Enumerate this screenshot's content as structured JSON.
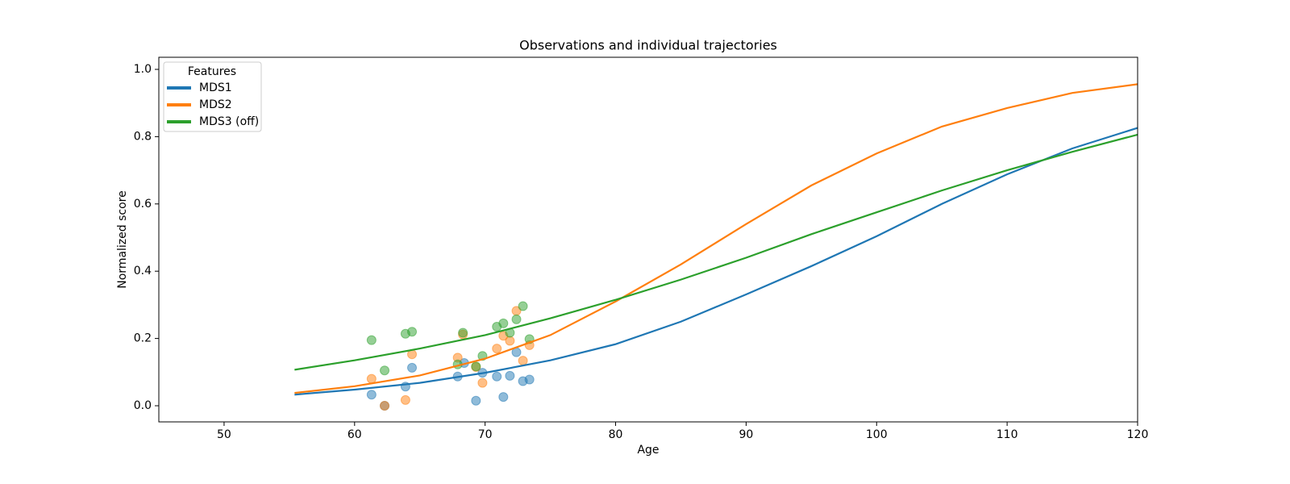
{
  "chart_data": {
    "type": "line",
    "title": "Observations and individual trajectories",
    "xlabel": "Age",
    "ylabel": "Normalized score",
    "legend_title": "Features",
    "legend": "upper left",
    "xlim": [
      45,
      120
    ],
    "ylim": [
      -0.048,
      1.036
    ],
    "xticks": [
      50,
      60,
      70,
      80,
      90,
      100,
      110,
      120
    ],
    "yticks": [
      {
        "value": 0,
        "label": "0.0"
      },
      {
        "value": 0.2,
        "label": "0.2"
      },
      {
        "value": 0.4,
        "label": "0.4"
      },
      {
        "value": 0.6,
        "label": "0.6"
      },
      {
        "value": 0.8,
        "label": "0.8"
      },
      {
        "value": 1.0,
        "label": "1.0"
      }
    ],
    "x": [
      55.4,
      60,
      65,
      70,
      75,
      80,
      85,
      90,
      95,
      100,
      105,
      110,
      115,
      120
    ],
    "series": [
      {
        "name": "MDS1",
        "color": "#1f77b4",
        "values": [
          0.033,
          0.048,
          0.068,
          0.098,
          0.135,
          0.183,
          0.25,
          0.331,
          0.415,
          0.504,
          0.6,
          0.688,
          0.765,
          0.826
        ],
        "points": {
          "x": [
            61.3,
            62.3,
            63.9,
            64.4,
            67.9,
            68.4,
            69.3,
            69.8,
            70.9,
            71.4,
            71.9,
            72.4,
            72.9,
            73.4
          ],
          "values": [
            0.033,
            0.0,
            0.057,
            0.113,
            0.087,
            0.127,
            0.015,
            0.098,
            0.087,
            0.026,
            0.089,
            0.159,
            0.073,
            0.078
          ]
        }
      },
      {
        "name": "MDS2",
        "color": "#ff7f0e",
        "values": [
          0.038,
          0.058,
          0.09,
          0.14,
          0.21,
          0.31,
          0.42,
          0.54,
          0.655,
          0.75,
          0.83,
          0.885,
          0.93,
          0.956
        ],
        "points": {
          "x": [
            61.3,
            62.3,
            63.9,
            64.4,
            67.9,
            68.3,
            69.3,
            69.8,
            70.9,
            71.4,
            71.9,
            72.4,
            72.9,
            73.4
          ],
          "values": [
            0.08,
            0.0,
            0.017,
            0.153,
            0.143,
            0.212,
            0.115,
            0.068,
            0.17,
            0.208,
            0.193,
            0.282,
            0.134,
            0.18
          ]
        }
      },
      {
        "name": "MDS3 (off)",
        "color": "#2ca02c",
        "values": [
          0.107,
          0.135,
          0.17,
          0.21,
          0.26,
          0.315,
          0.375,
          0.44,
          0.51,
          0.575,
          0.64,
          0.7,
          0.755,
          0.806
        ],
        "points": {
          "x": [
            61.3,
            62.3,
            63.9,
            64.4,
            67.9,
            68.3,
            69.3,
            69.8,
            70.9,
            71.4,
            71.9,
            72.4,
            72.9,
            73.4
          ],
          "values": [
            0.195,
            0.105,
            0.214,
            0.22,
            0.123,
            0.217,
            0.117,
            0.148,
            0.235,
            0.245,
            0.217,
            0.257,
            0.296,
            0.198
          ]
        }
      }
    ]
  }
}
